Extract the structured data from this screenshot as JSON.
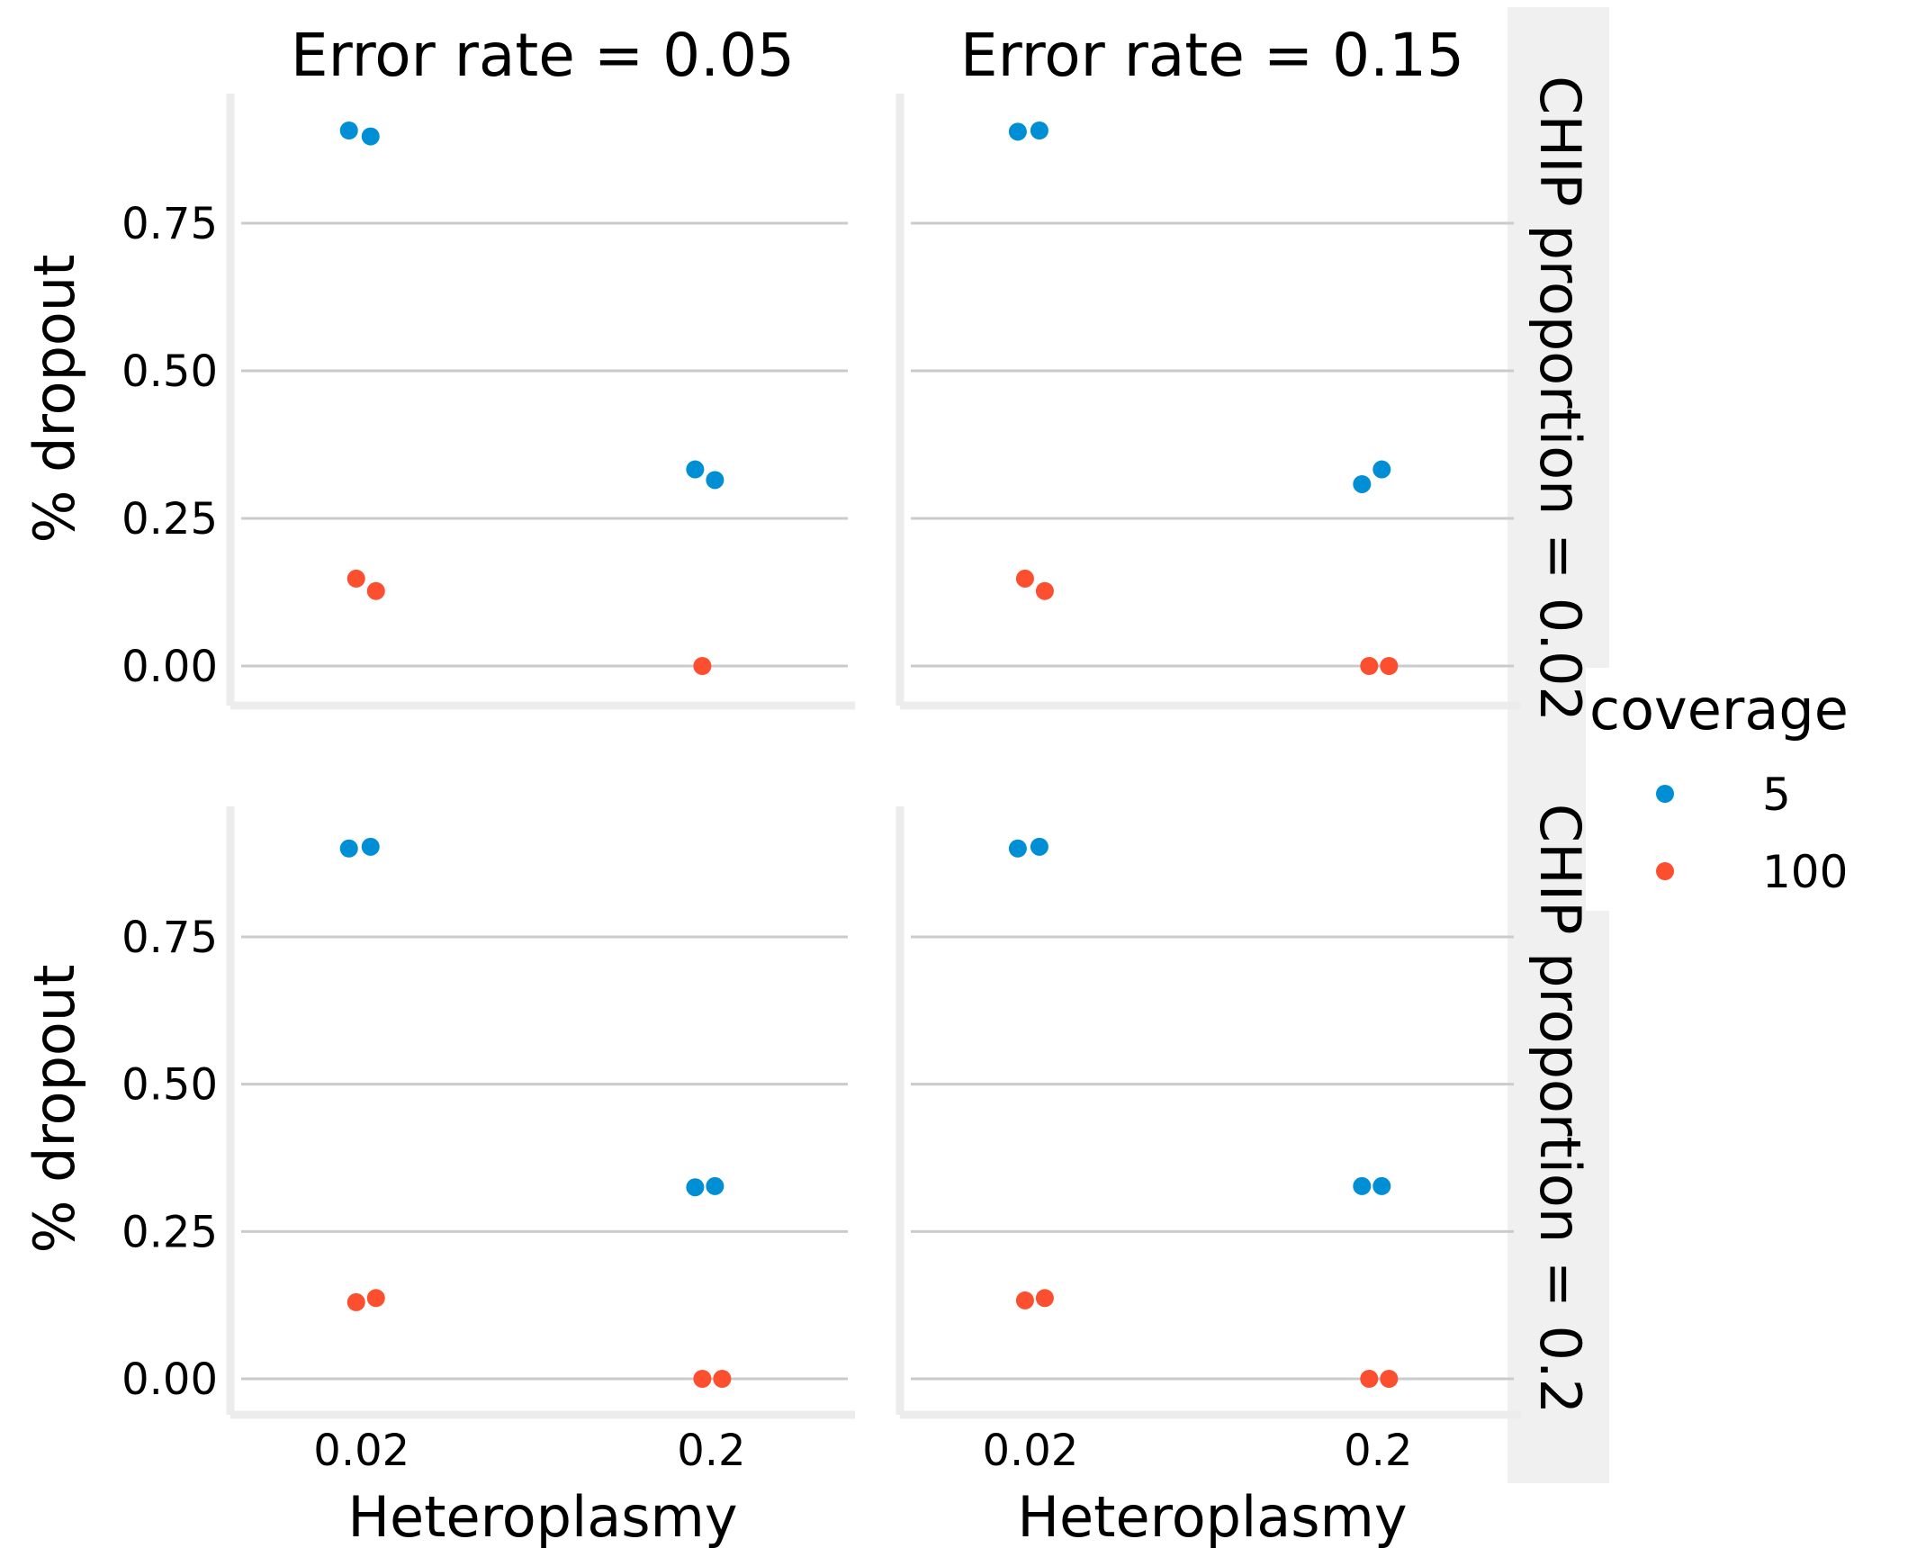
{
  "chart_data": {
    "type": "scatter",
    "x_axis_label": "Heteroplasmy",
    "y_axis_label": "% dropout",
    "x_categories": [
      "0.02",
      "0.2"
    ],
    "y_ticks": [
      "0.00",
      "0.25",
      "0.50",
      "0.75"
    ],
    "y_tick_values": [
      0,
      0.25,
      0.5,
      0.75
    ],
    "ylim": [
      -0.02,
      0.96
    ],
    "col_titles": [
      "Error rate = 0.05",
      "Error rate = 0.15"
    ],
    "row_titles": [
      "CHIP proportion = 0.02",
      "CHIP proportion = 0.2"
    ],
    "legend": {
      "title": "coverage",
      "entries": [
        {
          "label": "5",
          "color": "#008fd5"
        },
        {
          "label": "100",
          "color": "#fc4f30"
        }
      ]
    },
    "grid": "horizontal",
    "legend_position": "right",
    "panels": [
      {
        "row": 0,
        "col": 0,
        "points": [
          {
            "heteroplasmy": "0.02",
            "coverage": "5",
            "dropout": 0.907
          },
          {
            "heteroplasmy": "0.02",
            "coverage": "5",
            "dropout": 0.897
          },
          {
            "heteroplasmy": "0.02",
            "coverage": "100",
            "dropout": 0.148
          },
          {
            "heteroplasmy": "0.02",
            "coverage": "100",
            "dropout": 0.127
          },
          {
            "heteroplasmy": "0.2",
            "coverage": "5",
            "dropout": 0.333
          },
          {
            "heteroplasmy": "0.2",
            "coverage": "5",
            "dropout": 0.315
          },
          {
            "heteroplasmy": "0.2",
            "coverage": "100",
            "dropout": 0.0
          }
        ]
      },
      {
        "row": 0,
        "col": 1,
        "points": [
          {
            "heteroplasmy": "0.02",
            "coverage": "5",
            "dropout": 0.905
          },
          {
            "heteroplasmy": "0.02",
            "coverage": "5",
            "dropout": 0.907
          },
          {
            "heteroplasmy": "0.02",
            "coverage": "100",
            "dropout": 0.148
          },
          {
            "heteroplasmy": "0.02",
            "coverage": "100",
            "dropout": 0.127
          },
          {
            "heteroplasmy": "0.2",
            "coverage": "5",
            "dropout": 0.308
          },
          {
            "heteroplasmy": "0.2",
            "coverage": "5",
            "dropout": 0.333
          },
          {
            "heteroplasmy": "0.2",
            "coverage": "100",
            "dropout": 0.0
          },
          {
            "heteroplasmy": "0.2",
            "coverage": "100",
            "dropout": 0.0
          }
        ]
      },
      {
        "row": 1,
        "col": 0,
        "points": [
          {
            "heteroplasmy": "0.02",
            "coverage": "5",
            "dropout": 0.9
          },
          {
            "heteroplasmy": "0.02",
            "coverage": "5",
            "dropout": 0.903
          },
          {
            "heteroplasmy": "0.02",
            "coverage": "100",
            "dropout": 0.13
          },
          {
            "heteroplasmy": "0.02",
            "coverage": "100",
            "dropout": 0.137
          },
          {
            "heteroplasmy": "0.2",
            "coverage": "5",
            "dropout": 0.325
          },
          {
            "heteroplasmy": "0.2",
            "coverage": "5",
            "dropout": 0.327
          },
          {
            "heteroplasmy": "0.2",
            "coverage": "100",
            "dropout": 0.0
          },
          {
            "heteroplasmy": "0.2",
            "coverage": "100",
            "dropout": 0.0
          }
        ]
      },
      {
        "row": 1,
        "col": 1,
        "points": [
          {
            "heteroplasmy": "0.02",
            "coverage": "5",
            "dropout": 0.9
          },
          {
            "heteroplasmy": "0.02",
            "coverage": "5",
            "dropout": 0.903
          },
          {
            "heteroplasmy": "0.02",
            "coverage": "100",
            "dropout": 0.133
          },
          {
            "heteroplasmy": "0.02",
            "coverage": "100",
            "dropout": 0.137
          },
          {
            "heteroplasmy": "0.2",
            "coverage": "5",
            "dropout": 0.327
          },
          {
            "heteroplasmy": "0.2",
            "coverage": "5",
            "dropout": 0.327
          },
          {
            "heteroplasmy": "0.2",
            "coverage": "100",
            "dropout": 0.0
          },
          {
            "heteroplasmy": "0.2",
            "coverage": "100",
            "dropout": 0.0
          }
        ]
      }
    ]
  }
}
